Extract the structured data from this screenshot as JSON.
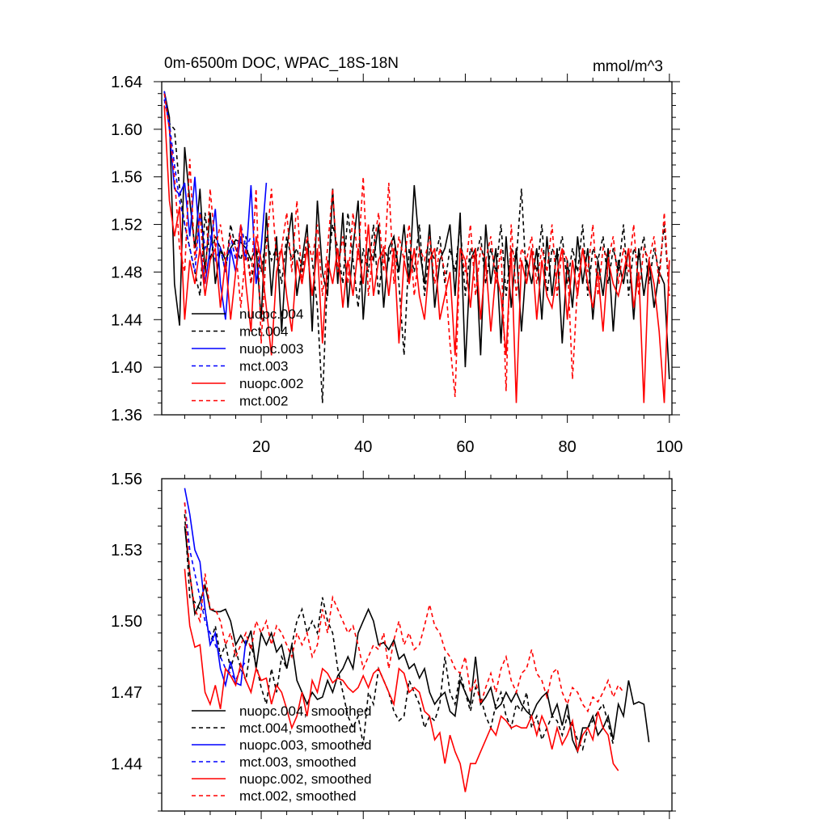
{
  "chart_data": [
    {
      "type": "line",
      "title": "0m-6500m DOC, WPAC_18S-18N",
      "units": "mmol/m^3",
      "xlim": [
        0.5,
        100.5
      ],
      "ylim": [
        1.36,
        1.64
      ],
      "xticks": [
        20,
        40,
        60,
        80,
        100
      ],
      "yticks": [
        1.36,
        1.4,
        1.44,
        1.48,
        1.52,
        1.56,
        1.6,
        1.64
      ],
      "yticklabels": [
        "1.36",
        "1.40",
        "1.44",
        "1.48",
        "1.52",
        "1.56",
        "1.60",
        "1.64"
      ],
      "show_x_labels": true,
      "legend_position": "lower-left",
      "series": [
        {
          "name": "nuopc.004",
          "color": "#000000",
          "dash": false,
          "x0": 1,
          "values": [
            1.632,
            1.61,
            1.47,
            1.435,
            1.585,
            1.54,
            1.5,
            1.55,
            1.48,
            1.53,
            1.47,
            1.5,
            1.49,
            1.5,
            1.507,
            1.505,
            1.5,
            1.49,
            1.5,
            1.44,
            1.53,
            1.46,
            1.51,
            1.43,
            1.5,
            1.53,
            1.46,
            1.49,
            1.52,
            1.43,
            1.54,
            1.48,
            1.46,
            1.55,
            1.47,
            1.53,
            1.45,
            1.5,
            1.54,
            1.44,
            1.5,
            1.49,
            1.52,
            1.45,
            1.5,
            1.51,
            1.48,
            1.52,
            1.47,
            1.553,
            1.5,
            1.47,
            1.52,
            1.45,
            1.49,
            1.5,
            1.52,
            1.46,
            1.53,
            1.4,
            1.49,
            1.5,
            1.41,
            1.52,
            1.47,
            1.5,
            1.42,
            1.51,
            1.45,
            1.5,
            1.43,
            1.49,
            1.47,
            1.5,
            1.44,
            1.51,
            1.46,
            1.5,
            1.42,
            1.49,
            1.45,
            1.51,
            1.47,
            1.5,
            1.44,
            1.49,
            1.46,
            1.5,
            1.43,
            1.49,
            1.47,
            1.5,
            1.44,
            1.5,
            1.46,
            1.49,
            1.45,
            1.48,
            1.47,
            1.39
          ]
        },
        {
          "name": "mct.004",
          "color": "#000000",
          "dash": true,
          "x0": 1,
          "values": [
            1.625,
            1.605,
            1.6,
            1.55,
            1.52,
            1.5,
            1.48,
            1.46,
            1.53,
            1.49,
            1.51,
            1.5,
            1.48,
            1.52,
            1.5,
            1.49,
            1.51,
            1.47,
            1.5,
            1.48,
            1.51,
            1.49,
            1.5,
            1.47,
            1.51,
            1.49,
            1.5,
            1.48,
            1.51,
            1.49,
            1.45,
            1.37,
            1.48,
            1.52,
            1.5,
            1.47,
            1.53,
            1.49,
            1.45,
            1.5,
            1.48,
            1.52,
            1.46,
            1.5,
            1.49,
            1.51,
            1.47,
            1.41,
            1.5,
            1.48,
            1.52,
            1.46,
            1.5,
            1.49,
            1.51,
            1.47,
            1.5,
            1.48,
            1.52,
            1.46,
            1.5,
            1.49,
            1.51,
            1.47,
            1.5,
            1.48,
            1.52,
            1.46,
            1.5,
            1.49,
            1.55,
            1.47,
            1.5,
            1.48,
            1.52,
            1.46,
            1.5,
            1.49,
            1.51,
            1.47,
            1.5,
            1.48,
            1.52,
            1.46,
            1.5,
            1.49,
            1.51,
            1.47,
            1.5,
            1.48,
            1.52,
            1.46,
            1.5,
            1.49,
            1.51,
            1.47,
            1.5,
            1.48,
            1.52,
            1.46
          ]
        },
        {
          "name": "nuopc.003",
          "color": "#0000ff",
          "dash": false,
          "x0": 1,
          "values": [
            1.632,
            1.6,
            1.55,
            1.545,
            1.555,
            1.51,
            1.56,
            1.5,
            1.47,
            1.5,
            1.533,
            1.47,
            1.44,
            1.5,
            1.48,
            1.51,
            1.49,
            1.553,
            1.47,
            1.5,
            1.555
          ]
        },
        {
          "name": "mct.003",
          "color": "#0000ff",
          "dash": true,
          "x0": 1,
          "values": [
            1.625,
            1.605,
            1.57,
            1.54,
            1.52,
            1.5,
            1.48,
            1.53,
            1.5,
            1.51,
            1.49,
            1.5,
            1.48,
            1.51,
            1.49,
            1.52,
            1.5,
            1.51
          ]
        },
        {
          "name": "nuopc.002",
          "color": "#ff0000",
          "dash": false,
          "x0": 1,
          "values": [
            1.62,
            1.54,
            1.51,
            1.535,
            1.44,
            1.49,
            1.47,
            1.5,
            1.46,
            1.49,
            1.5,
            1.45,
            1.49,
            1.44,
            1.48,
            1.52,
            1.47,
            1.43,
            1.51,
            1.49,
            1.45,
            1.41,
            1.48,
            1.5,
            1.46,
            1.43,
            1.49,
            1.47,
            1.5,
            1.46,
            1.5,
            1.42,
            1.49,
            1.47,
            1.5,
            1.45,
            1.49,
            1.46,
            1.5,
            1.47,
            1.52,
            1.46,
            1.49,
            1.5,
            1.46,
            1.5,
            1.42,
            1.49,
            1.47,
            1.5,
            1.46,
            1.44,
            1.49,
            1.5,
            1.44,
            1.46,
            1.48,
            1.41,
            1.5,
            1.49,
            1.45,
            1.5,
            1.44,
            1.49,
            1.43,
            1.48,
            1.46,
            1.41,
            1.5,
            1.37,
            1.49,
            1.47,
            1.5,
            1.44,
            1.49,
            1.46,
            1.45,
            1.48,
            1.5,
            1.44,
            1.49,
            1.46,
            1.5,
            1.47,
            1.45,
            1.48,
            1.43,
            1.49,
            1.47,
            1.46,
            1.48,
            1.5,
            1.45,
            1.48,
            1.37,
            1.49,
            1.47,
            1.43,
            1.37,
            1.49
          ]
        },
        {
          "name": "mct.002",
          "color": "#ff0000",
          "dash": true,
          "x0": 1,
          "values": [
            1.63,
            1.6,
            1.56,
            1.5,
            1.48,
            1.575,
            1.49,
            1.53,
            1.47,
            1.55,
            1.5,
            1.52,
            1.49,
            1.51,
            1.5,
            1.45,
            1.5,
            1.47,
            1.55,
            1.42,
            1.5,
            1.55,
            1.49,
            1.5,
            1.53,
            1.48,
            1.54,
            1.47,
            1.51,
            1.49,
            1.52,
            1.46,
            1.5,
            1.55,
            1.48,
            1.51,
            1.47,
            1.53,
            1.49,
            1.56,
            1.46,
            1.5,
            1.53,
            1.48,
            1.555,
            1.47,
            1.51,
            1.49,
            1.52,
            1.46,
            1.5,
            1.49,
            1.51,
            1.47,
            1.5,
            1.48,
            1.42,
            1.375,
            1.5,
            1.48,
            1.52,
            1.46,
            1.5,
            1.49,
            1.51,
            1.47,
            1.5,
            1.38,
            1.52,
            1.46,
            1.5,
            1.49,
            1.51,
            1.47,
            1.5,
            1.48,
            1.52,
            1.46,
            1.5,
            1.49,
            1.39,
            1.47,
            1.5,
            1.48,
            1.52,
            1.46,
            1.5,
            1.49,
            1.51,
            1.47,
            1.5,
            1.48,
            1.52,
            1.46,
            1.5,
            1.49,
            1.51,
            1.47,
            1.53,
            1.46
          ]
        }
      ]
    },
    {
      "type": "line",
      "title": "",
      "xlim": [
        0.5,
        100.5
      ],
      "ylim": [
        1.42,
        1.56
      ],
      "xticks": [
        20,
        40,
        60,
        80,
        100
      ],
      "yticks": [
        1.44,
        1.47,
        1.5,
        1.53,
        1.56
      ],
      "yticklabels": [
        "1.44",
        "1.47",
        "1.50",
        "1.53",
        "1.56"
      ],
      "show_x_labels": false,
      "legend_position": "lower-left",
      "series": [
        {
          "name": "nuopc.004, smoothed",
          "color": "#000000",
          "dash": false,
          "x0": 5,
          "values": [
            1.54,
            1.52,
            1.503,
            1.508,
            1.515,
            1.505,
            1.504,
            1.504,
            1.505,
            1.5,
            1.49,
            1.494,
            1.49,
            1.496,
            1.48,
            1.495,
            1.49,
            1.495,
            1.487,
            1.49,
            1.48,
            1.49,
            1.475,
            1.47,
            1.465,
            1.47,
            1.467,
            1.468,
            1.475,
            1.47,
            1.477,
            1.48,
            1.485,
            1.48,
            1.495,
            1.5,
            1.505,
            1.5,
            1.49,
            1.491,
            1.488,
            1.492,
            1.484,
            1.486,
            1.48,
            1.482,
            1.476,
            1.48,
            1.47,
            1.465,
            1.468,
            1.47,
            1.462,
            1.46,
            1.475,
            1.47,
            1.465,
            1.485,
            1.465,
            1.468,
            1.472,
            1.463,
            1.465,
            1.47,
            1.466,
            1.47,
            1.465,
            1.462,
            1.46,
            1.465,
            1.468,
            1.47,
            1.46,
            1.465,
            1.456,
            1.465,
            1.45,
            1.445,
            1.455,
            1.455,
            1.46,
            1.452,
            1.455,
            1.46,
            1.45,
            1.465,
            1.46,
            1.475,
            1.465,
            1.466,
            1.465,
            1.449
          ]
        },
        {
          "name": "mct.004, smoothed",
          "color": "#000000",
          "dash": true,
          "x0": 5,
          "values": [
            1.545,
            1.51,
            1.508,
            1.505,
            1.505,
            1.49,
            1.498,
            1.485,
            1.49,
            1.48,
            1.488,
            1.48,
            1.475,
            1.49,
            1.482,
            1.472,
            1.465,
            1.48,
            1.47,
            1.485,
            1.48,
            1.49,
            1.5,
            1.505,
            1.495,
            1.5,
            1.495,
            1.51,
            1.5,
            1.495,
            1.48,
            1.47,
            1.46,
            1.455,
            1.46,
            1.448,
            1.47,
            1.465,
            1.48,
            1.475,
            1.47,
            1.462,
            1.458,
            1.46,
            1.475,
            1.47,
            1.465,
            1.455,
            1.46,
            1.458,
            1.465,
            1.485,
            1.47,
            1.465,
            1.478,
            1.47,
            1.462,
            1.472,
            1.468,
            1.46,
            1.455,
            1.465,
            1.47,
            1.46,
            1.455,
            1.465,
            1.462,
            1.47,
            1.455,
            1.46,
            1.45,
            1.455,
            1.46,
            1.458,
            1.452,
            1.46,
            1.456,
            1.45,
            1.446,
            1.455,
            1.458,
            1.462,
            1.465,
            1.457,
            1.448
          ]
        },
        {
          "name": "nuopc.003, smoothed",
          "color": "#0000ff",
          "dash": false,
          "x0": 5,
          "values": [
            1.556,
            1.545,
            1.53,
            1.525,
            1.505,
            1.49,
            1.495,
            1.48,
            1.473,
            1.483,
            1.474,
            1.473,
            1.492
          ]
        },
        {
          "name": "mct.003, smoothed",
          "color": "#0000ff",
          "dash": true,
          "x0": 5,
          "values": [
            1.55,
            1.53,
            1.52,
            1.51,
            1.5,
            1.495,
            1.49,
            1.485,
            1.48,
            1.478,
            1.475,
            1.48,
            1.483
          ]
        },
        {
          "name": "nuopc.002, smoothed",
          "color": "#ff0000",
          "dash": false,
          "x0": 5,
          "values": [
            1.522,
            1.498,
            1.489,
            1.49,
            1.47,
            1.465,
            1.473,
            1.463,
            1.48,
            1.477,
            1.473,
            1.482,
            1.475,
            1.47,
            1.48,
            1.475,
            1.476,
            1.465,
            1.473,
            1.47,
            1.463,
            1.455,
            1.46,
            1.47,
            1.46,
            1.475,
            1.47,
            1.48,
            1.478,
            1.474,
            1.476,
            1.475,
            1.472,
            1.47,
            1.472,
            1.477,
            1.472,
            1.478,
            1.48,
            1.475,
            1.47,
            1.465,
            1.48,
            1.478,
            1.47,
            1.472,
            1.47,
            1.462,
            1.46,
            1.45,
            1.453,
            1.44,
            1.452,
            1.445,
            1.44,
            1.428,
            1.44,
            1.44,
            1.445,
            1.45,
            1.455,
            1.452,
            1.46,
            1.458,
            1.455,
            1.456,
            1.455,
            1.455,
            1.46,
            1.452,
            1.46,
            1.455,
            1.446,
            1.455,
            1.448,
            1.452,
            1.458,
            1.445,
            1.452,
            1.455,
            1.45,
            1.462,
            1.455,
            1.452,
            1.44,
            1.437
          ]
        },
        {
          "name": "mct.002, smoothed",
          "color": "#ff0000",
          "dash": true,
          "x0": 5,
          "values": [
            1.55,
            1.52,
            1.505,
            1.5,
            1.52,
            1.505,
            1.505,
            1.5,
            1.49,
            1.495,
            1.485,
            1.49,
            1.495,
            1.488,
            1.5,
            1.495,
            1.5,
            1.49,
            1.498,
            1.495,
            1.49,
            1.485,
            1.495,
            1.49,
            1.495,
            1.485,
            1.49,
            1.505,
            1.495,
            1.51,
            1.505,
            1.5,
            1.495,
            1.498,
            1.49,
            1.48,
            1.485,
            1.49,
            1.488,
            1.495,
            1.48,
            1.492,
            1.5,
            1.49,
            1.495,
            1.488,
            1.49,
            1.498,
            1.507,
            1.498,
            1.495,
            1.488,
            1.485,
            1.48,
            1.478,
            1.485,
            1.47,
            1.475,
            1.465,
            1.472,
            1.478,
            1.47,
            1.48,
            1.485,
            1.475,
            1.47,
            1.478,
            1.48,
            1.488,
            1.478,
            1.475,
            1.468,
            1.478,
            1.48,
            1.47,
            1.465,
            1.472,
            1.47,
            1.465,
            1.462,
            1.468,
            1.466,
            1.47,
            1.475,
            1.468,
            1.473,
            1.47
          ]
        }
      ]
    }
  ]
}
